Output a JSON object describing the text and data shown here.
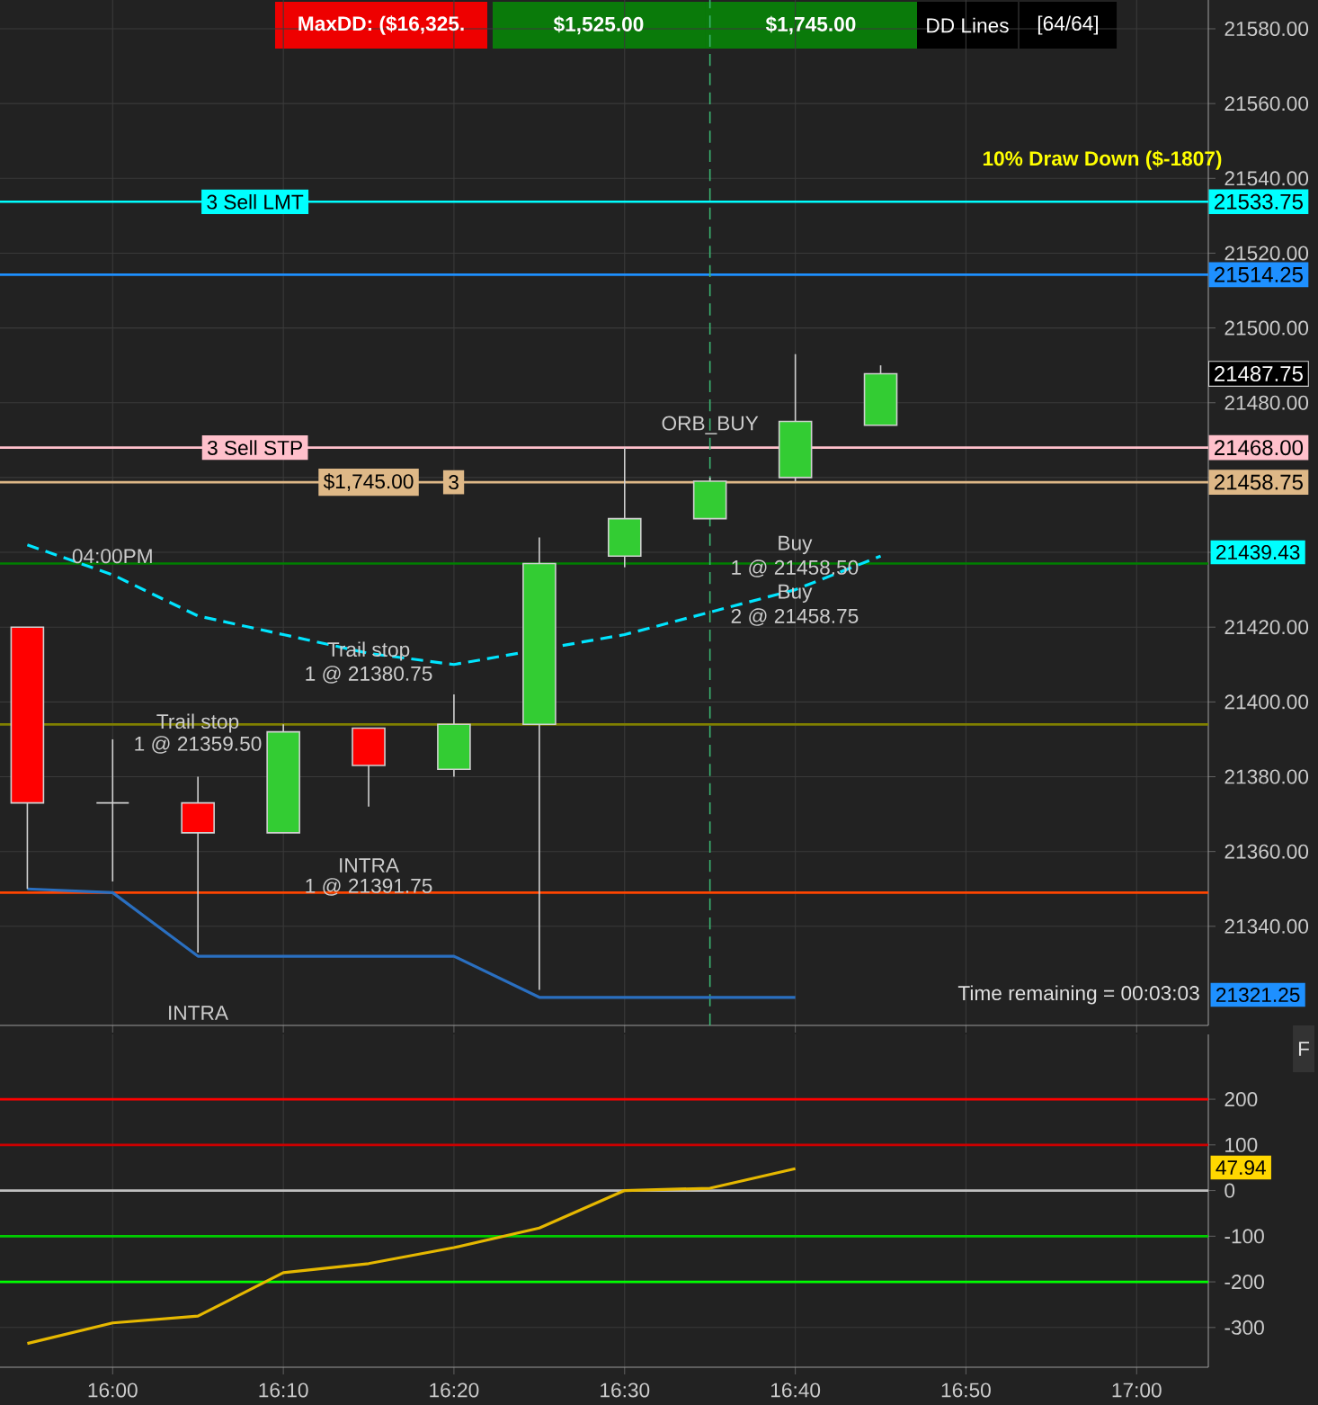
{
  "chart_data": [
    {
      "type": "candlestick",
      "x": [
        15.9167,
        16.0,
        16.0833,
        16.1667,
        16.25,
        16.3333,
        16.4167,
        16.5,
        16.5833,
        16.6667,
        16.75
      ],
      "ohlc": [
        [
          21420,
          21420,
          21350,
          21373
        ],
        [
          21373,
          21390,
          21352,
          21373
        ],
        [
          21373,
          21380,
          21333,
          21365
        ],
        [
          21365,
          21394,
          21365,
          21392
        ],
        [
          21393,
          21393,
          21372,
          21383
        ],
        [
          21382,
          21402,
          21380,
          21394
        ],
        [
          21394,
          21444,
          21323,
          21437
        ],
        [
          21439,
          21468,
          21436,
          21449
        ],
        [
          21449,
          21460,
          21449,
          21459
        ],
        [
          21460,
          21493,
          21459,
          21475
        ],
        [
          21474,
          21490,
          21474,
          21487.75
        ]
      ],
      "value_labels": [
        null,
        null,
        null,
        null,
        null,
        null,
        null,
        null,
        null,
        null,
        "21487.75"
      ],
      "series": [
        {
          "type": "line",
          "color": "#00e5ff",
          "line_style": "dashed",
          "values": [
            21442,
            21434,
            21423,
            21418,
            21413,
            21410,
            null,
            21418,
            21424,
            21430,
            21439
          ]
        },
        {
          "type": "line",
          "color": "#2a6fc0",
          "line_style": "solid",
          "values": [
            21350,
            21349,
            21332,
            21332,
            21332,
            21332,
            21321,
            21321,
            21321,
            21321,
            null
          ]
        }
      ],
      "marker": "none",
      "xlim": [
        15.89,
        17.07
      ],
      "ylim": [
        21313.5,
        21587.7
      ],
      "xticks": [
        {
          "value": 16,
          "label": null
        },
        {
          "value": 16.1667,
          "label": null
        },
        {
          "value": 16.3333,
          "label": null
        },
        {
          "value": 16.5,
          "label": null
        },
        {
          "value": 16.6667,
          "label": null
        },
        {
          "value": 16.8333,
          "label": null
        },
        {
          "value": 17,
          "label": null
        }
      ],
      "yticks": [
        {
          "value": 21340,
          "label": "21340.00"
        },
        {
          "value": 21360,
          "label": "21360.00"
        },
        {
          "value": 21380,
          "label": "21380.00"
        },
        {
          "value": 21400,
          "label": "21400.00"
        },
        {
          "value": 21420,
          "label": "21420.00"
        },
        {
          "value": 21440,
          "label": null
        },
        {
          "value": 21460,
          "label": null
        },
        {
          "value": 21480,
          "label": "21480.00"
        },
        {
          "value": 21500,
          "label": "21500.00"
        },
        {
          "value": 21520,
          "label": "21520.00"
        },
        {
          "value": 21540,
          "label": "21540.00"
        },
        {
          "value": 21560,
          "label": "21560.00"
        },
        {
          "value": 21580,
          "label": "21580.00"
        }
      ],
      "tick_labels": "y",
      "grid": true,
      "ref_lines": [
        {
          "axis": "y",
          "value": 21533.75,
          "label": "21533.75",
          "color": "#00ffff"
        },
        {
          "axis": "y",
          "value": 21514.25,
          "label": "21514.25",
          "color": "#1e90ff"
        },
        {
          "axis": "y",
          "value": 21468.0,
          "label": "21468.00",
          "color": "#ffc0cb"
        },
        {
          "axis": "y",
          "value": 21458.75,
          "label": "21458.75",
          "color": "#deb887"
        },
        {
          "axis": "y",
          "value": 21437,
          "color": "#008000"
        },
        {
          "axis": "y",
          "value": 21394,
          "color": "#808000"
        },
        {
          "axis": "y",
          "value": 21349,
          "color": "#ff4500"
        },
        {
          "axis": "x",
          "value": 16.5833,
          "color": "#3cb371",
          "line_style": "dashed"
        }
      ],
      "annotations": [
        "MaxDD: ($16,325.",
        "$1,525.00",
        "$1,745.00",
        "DD Lines",
        "[64/64]",
        "10% Draw Down ($-1807)",
        "Time remaining = 00:03:03",
        "21439.43",
        "21321.25",
        "Trail stop",
        "1 @ 21359.50",
        "Trail stop",
        "1 @ 21380.75",
        "INTRA",
        "1 @ 21391.75",
        "INTRA",
        "Buy",
        "1 @ 21458.50",
        "Buy",
        "2 @ 21458.75",
        {
          "text": "3  Sell LMT",
          "x": 16.139,
          "y": 21533.75
        },
        {
          "text": "3  Sell STP",
          "x": 16.139,
          "y": 21468.0
        },
        {
          "text": "$1,745.00",
          "x": 16.25,
          "y": 21458.75
        },
        {
          "text": "3",
          "x": 16.333,
          "y": 21458.75
        },
        {
          "text": "04:00PM",
          "x": 16.0,
          "y": 21439
        },
        {
          "text": "ORB_BUY",
          "x": 16.5833,
          "y": 21474
        }
      ]
    },
    {
      "type": "line",
      "x": [
        15.9167,
        16.0,
        16.0833,
        16.1667,
        16.25,
        16.3333,
        16.4167,
        16.5,
        16.5833,
        16.6667
      ],
      "series": [
        {
          "color": "#e6b800",
          "values": [
            -335,
            -290,
            -275,
            -180,
            -160,
            -125,
            -82,
            0,
            5,
            48
          ]
        }
      ],
      "marker": "none",
      "xlim": [
        15.89,
        17.07
      ],
      "ylim": [
        -387,
        342
      ],
      "xticks": [
        {
          "value": 16,
          "label": "16:00"
        },
        {
          "value": 16.1667,
          "label": "16:10"
        },
        {
          "value": 16.3333,
          "label": "16:20"
        },
        {
          "value": 16.5,
          "label": "16:30"
        },
        {
          "value": 16.6667,
          "label": "16:40"
        },
        {
          "value": 16.8333,
          "label": "16:50"
        },
        {
          "value": 17,
          "label": "17:00"
        }
      ],
      "yticks": [
        -300,
        -200,
        -100,
        0,
        100,
        200
      ],
      "grid": true,
      "ref_lines": [
        {
          "axis": "y",
          "value": 200,
          "color": "#ff0000"
        },
        {
          "axis": "y",
          "value": 100,
          "color": "#cc0000"
        },
        {
          "axis": "y",
          "value": 0,
          "color": "#c0c0c0"
        },
        {
          "axis": "y",
          "value": -100,
          "color": "#00cc00"
        },
        {
          "axis": "y",
          "value": -200,
          "color": "#00ff00"
        }
      ],
      "annotations": [
        "F",
        "47.94"
      ]
    }
  ]
}
